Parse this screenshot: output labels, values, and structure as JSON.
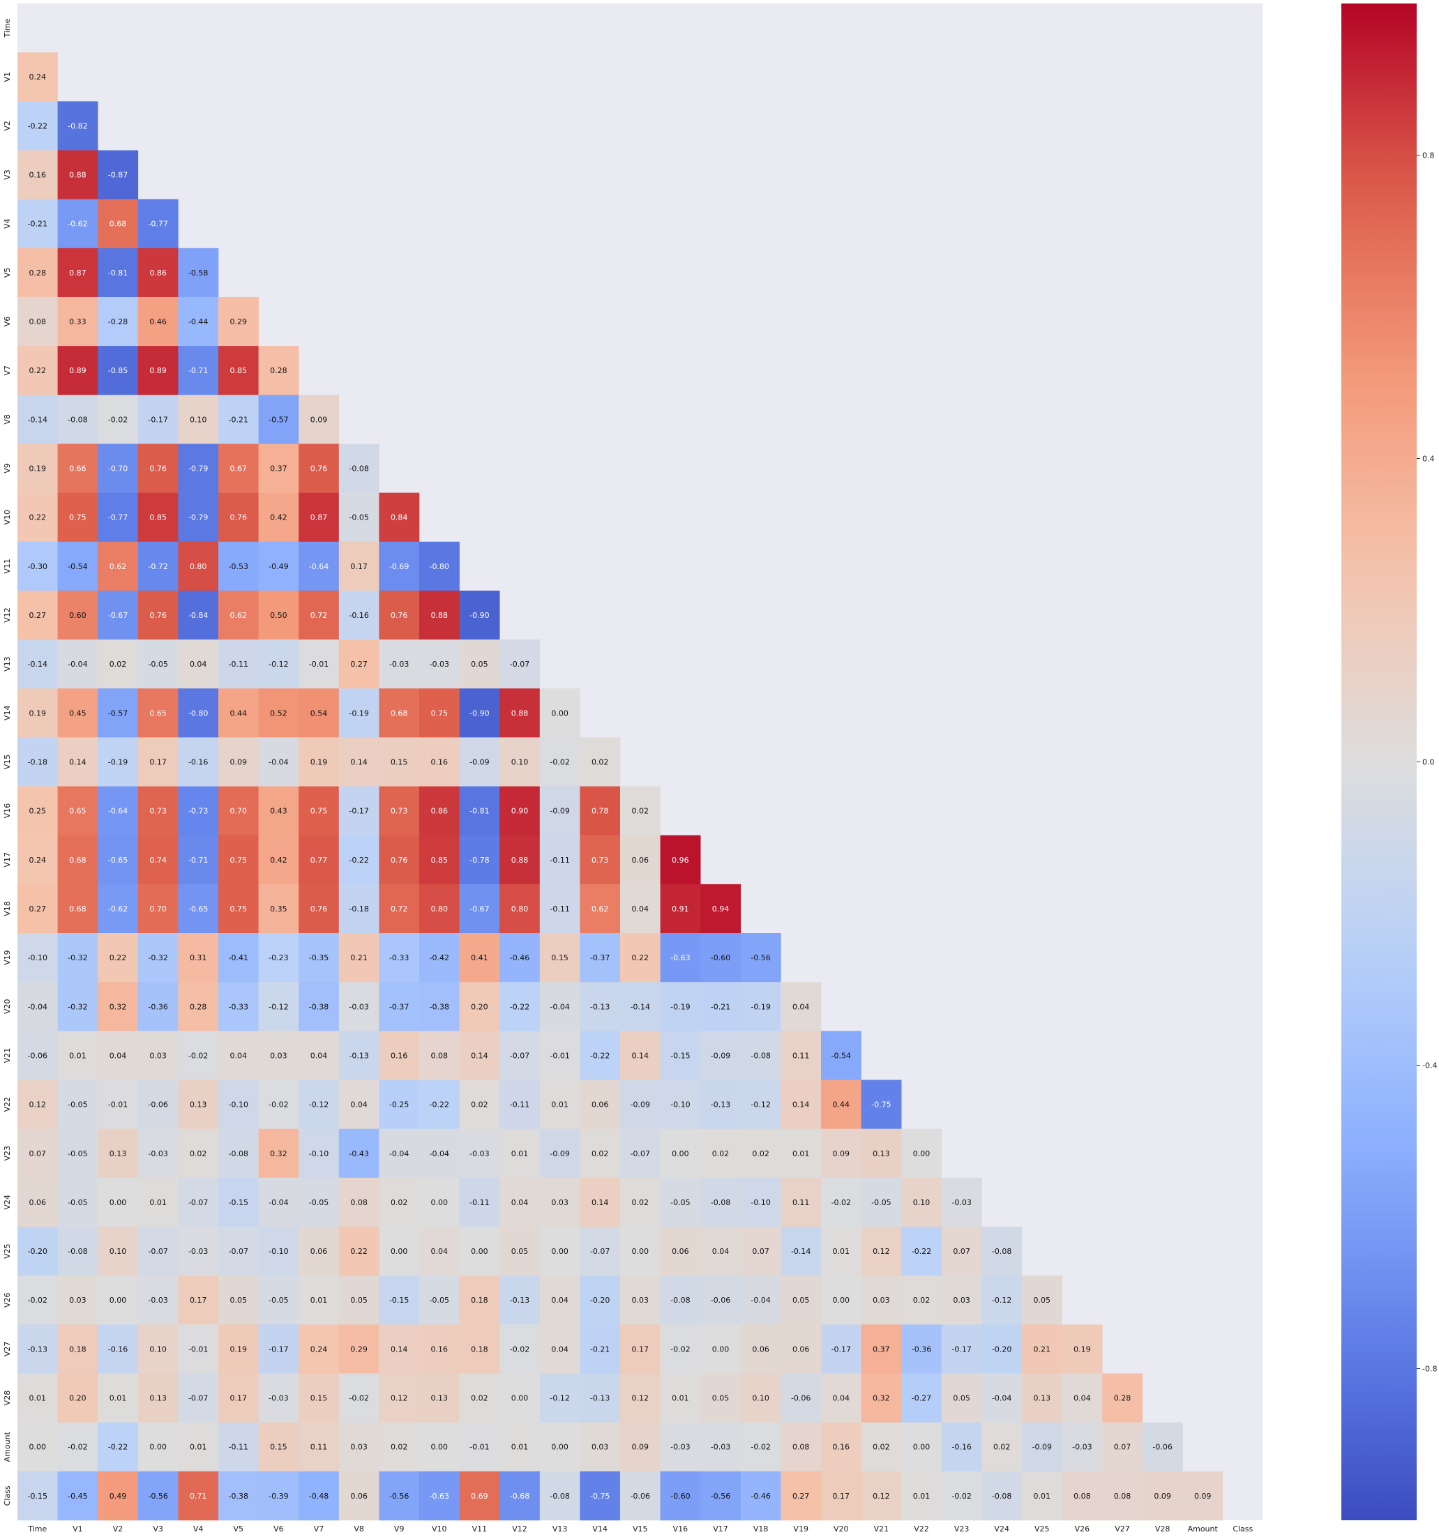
{
  "chart_data": {
    "type": "heatmap",
    "variables": [
      "Time",
      "V1",
      "V2",
      "V3",
      "V4",
      "V5",
      "V6",
      "V7",
      "V8",
      "V9",
      "V10",
      "V11",
      "V12",
      "V13",
      "V14",
      "V15",
      "V16",
      "V17",
      "V18",
      "V19",
      "V20",
      "V21",
      "V22",
      "V23",
      "V24",
      "V25",
      "V26",
      "V27",
      "V28",
      "Amount",
      "Class"
    ],
    "mask": "upper-triangle-including-diagonal",
    "colormap": "coolwarm",
    "value_range": [
      -1,
      1
    ],
    "colorbar_ticks": [
      0.8,
      0.4,
      0.0,
      -0.4,
      -0.8
    ],
    "colorbar_tick_labels": [
      "0.8",
      "0.4",
      "0.0",
      "-0.4",
      "-0.8"
    ],
    "masked_color": "#eaeaf2",
    "rows": [
      [],
      [
        0.24
      ],
      [
        -0.22,
        -0.82
      ],
      [
        0.16,
        0.88,
        -0.87
      ],
      [
        -0.21,
        -0.62,
        0.68,
        -0.77
      ],
      [
        0.28,
        0.87,
        -0.81,
        0.86,
        -0.58
      ],
      [
        0.08,
        0.33,
        -0.28,
        0.46,
        -0.44,
        0.29
      ],
      [
        0.22,
        0.89,
        -0.85,
        0.89,
        -0.71,
        0.85,
        0.28
      ],
      [
        -0.14,
        -0.08,
        -0.02,
        -0.17,
        0.1,
        -0.21,
        -0.57,
        0.09
      ],
      [
        0.19,
        0.66,
        -0.7,
        0.76,
        -0.79,
        0.67,
        0.37,
        0.76,
        -0.08
      ],
      [
        0.22,
        0.75,
        -0.77,
        0.85,
        -0.79,
        0.76,
        0.42,
        0.87,
        -0.05,
        0.84
      ],
      [
        -0.3,
        -0.54,
        0.62,
        -0.72,
        0.8,
        -0.53,
        -0.49,
        -0.64,
        0.17,
        -0.69,
        -0.8
      ],
      [
        0.27,
        0.6,
        -0.67,
        0.76,
        -0.84,
        0.62,
        0.5,
        0.72,
        -0.16,
        0.76,
        0.88,
        -0.9
      ],
      [
        -0.14,
        -0.04,
        0.02,
        -0.05,
        0.04,
        -0.11,
        -0.12,
        -0.01,
        0.27,
        -0.03,
        -0.03,
        0.05,
        -0.07
      ],
      [
        0.19,
        0.45,
        -0.57,
        0.65,
        -0.8,
        0.44,
        0.52,
        0.54,
        -0.19,
        0.68,
        0.75,
        -0.9,
        0.88,
        0.0
      ],
      [
        -0.18,
        0.14,
        -0.19,
        0.17,
        -0.16,
        0.09,
        -0.04,
        0.19,
        0.14,
        0.15,
        0.16,
        -0.09,
        0.1,
        -0.02,
        0.02
      ],
      [
        0.25,
        0.65,
        -0.64,
        0.73,
        -0.73,
        0.7,
        0.43,
        0.75,
        -0.17,
        0.73,
        0.86,
        -0.81,
        0.9,
        -0.09,
        0.78,
        0.02
      ],
      [
        0.24,
        0.68,
        -0.65,
        0.74,
        -0.71,
        0.75,
        0.42,
        0.77,
        -0.22,
        0.76,
        0.85,
        -0.78,
        0.88,
        -0.11,
        0.73,
        0.06,
        0.96
      ],
      [
        0.27,
        0.68,
        -0.62,
        0.7,
        -0.65,
        0.75,
        0.35,
        0.76,
        -0.18,
        0.72,
        0.8,
        -0.67,
        0.8,
        -0.11,
        0.62,
        0.04,
        0.91,
        0.94
      ],
      [
        -0.1,
        -0.32,
        0.22,
        -0.32,
        0.31,
        -0.41,
        -0.23,
        -0.35,
        0.21,
        -0.33,
        -0.42,
        0.41,
        -0.46,
        0.15,
        -0.37,
        0.22,
        -0.63,
        -0.6,
        -0.56
      ],
      [
        -0.04,
        -0.32,
        0.32,
        -0.36,
        0.28,
        -0.33,
        -0.12,
        -0.38,
        -0.03,
        -0.37,
        -0.38,
        0.2,
        -0.22,
        -0.04,
        -0.13,
        -0.14,
        -0.19,
        -0.21,
        -0.19,
        0.04
      ],
      [
        -0.06,
        0.01,
        0.04,
        0.03,
        -0.02,
        0.04,
        0.03,
        0.04,
        -0.13,
        0.16,
        0.08,
        0.14,
        -0.07,
        -0.01,
        -0.22,
        0.14,
        -0.15,
        -0.09,
        -0.08,
        0.11,
        -0.54
      ],
      [
        0.12,
        -0.05,
        -0.01,
        -0.06,
        0.13,
        -0.1,
        -0.02,
        -0.12,
        0.04,
        -0.25,
        -0.22,
        0.02,
        -0.11,
        0.01,
        0.06,
        -0.09,
        -0.1,
        -0.13,
        -0.12,
        0.14,
        0.44,
        -0.75
      ],
      [
        0.07,
        -0.05,
        0.13,
        -0.03,
        0.02,
        -0.08,
        0.32,
        -0.1,
        -0.43,
        -0.04,
        -0.04,
        -0.03,
        0.01,
        -0.09,
        0.02,
        -0.07,
        0.0,
        0.02,
        0.02,
        0.01,
        0.09,
        0.13,
        -0.0
      ],
      [
        0.06,
        -0.05,
        -0.0,
        0.01,
        -0.07,
        -0.15,
        -0.04,
        -0.05,
        0.08,
        0.02,
        -0.0,
        -0.11,
        0.04,
        0.03,
        0.14,
        0.02,
        -0.05,
        -0.08,
        -0.1,
        0.11,
        -0.02,
        -0.05,
        0.1,
        -0.03
      ],
      [
        -0.2,
        -0.08,
        0.1,
        -0.07,
        -0.03,
        -0.07,
        -0.1,
        0.06,
        0.22,
        0.0,
        0.04,
        0.0,
        0.05,
        0.0,
        -0.07,
        -0.0,
        0.06,
        0.04,
        0.07,
        -0.14,
        0.01,
        0.12,
        -0.22,
        0.07,
        -0.08
      ],
      [
        -0.02,
        0.03,
        0.0,
        -0.03,
        0.17,
        0.05,
        -0.05,
        0.01,
        0.05,
        -0.15,
        -0.05,
        0.18,
        -0.13,
        0.04,
        -0.2,
        0.03,
        -0.08,
        -0.06,
        -0.04,
        0.05,
        0.0,
        0.03,
        0.02,
        0.03,
        -0.12,
        0.05
      ],
      [
        -0.13,
        0.18,
        -0.16,
        0.1,
        -0.01,
        0.19,
        -0.17,
        0.24,
        0.29,
        0.14,
        0.16,
        0.18,
        -0.02,
        0.04,
        -0.21,
        0.17,
        -0.02,
        0.0,
        0.06,
        0.06,
        -0.17,
        0.37,
        -0.36,
        -0.17,
        -0.2,
        0.21,
        0.19
      ],
      [
        0.01,
        0.2,
        0.01,
        0.13,
        -0.07,
        0.17,
        -0.03,
        0.15,
        -0.02,
        0.12,
        0.13,
        0.02,
        0.0,
        -0.12,
        -0.13,
        0.12,
        0.01,
        0.05,
        0.1,
        -0.06,
        0.04,
        0.32,
        -0.27,
        0.05,
        -0.04,
        0.13,
        0.04,
        0.28
      ],
      [
        -0.0,
        -0.02,
        -0.22,
        -0.0,
        0.01,
        -0.11,
        0.15,
        0.11,
        0.03,
        0.02,
        -0.0,
        -0.01,
        0.01,
        -0.0,
        0.03,
        0.09,
        -0.03,
        -0.03,
        -0.02,
        0.08,
        0.16,
        0.02,
        -0.0,
        -0.16,
        0.02,
        -0.09,
        -0.03,
        0.07,
        -0.06
      ],
      [
        -0.15,
        -0.45,
        0.49,
        -0.56,
        0.71,
        -0.38,
        -0.39,
        -0.48,
        0.06,
        -0.56,
        -0.63,
        0.69,
        -0.68,
        -0.08,
        -0.75,
        -0.06,
        -0.6,
        -0.56,
        -0.46,
        0.27,
        0.17,
        0.12,
        0.01,
        -0.02,
        -0.08,
        0.01,
        0.08,
        0.08,
        0.09,
        0.09
      ]
    ]
  }
}
